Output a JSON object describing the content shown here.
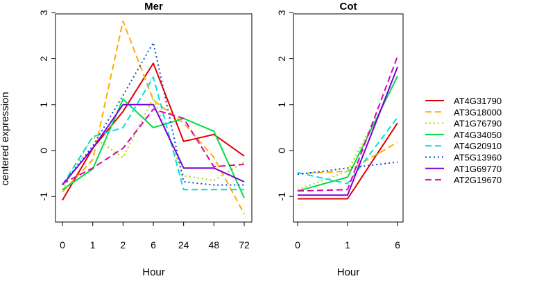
{
  "ylabel": "centered expression",
  "chart_data": [
    {
      "type": "line",
      "title": "Mer",
      "xlabel": "Hour",
      "categories": [
        "0",
        "1",
        "2",
        "6",
        "24",
        "48",
        "72"
      ],
      "ylim": [
        -1.5,
        3
      ],
      "yticks": [
        -1,
        0,
        1,
        2,
        3
      ],
      "series": [
        {
          "name": "AT4G31790",
          "values": [
            -1.08,
            0.05,
            0.85,
            1.9,
            0.2,
            0.35,
            -0.12
          ]
        },
        {
          "name": "AT3G18000",
          "values": [
            -0.9,
            -0.2,
            2.82,
            1.1,
            0.6,
            -0.15,
            -1.38
          ]
        },
        {
          "name": "AT1G76790",
          "values": [
            -0.85,
            0.3,
            -0.15,
            1.15,
            -0.55,
            -0.65,
            -0.25
          ]
        },
        {
          "name": "AT4G34050",
          "values": [
            -0.85,
            -0.4,
            1.12,
            0.5,
            0.7,
            0.42,
            -1.03
          ]
        },
        {
          "name": "AT4G20910",
          "values": [
            -0.75,
            0.3,
            0.5,
            1.6,
            -0.85,
            -0.85,
            -0.85
          ]
        },
        {
          "name": "AT5G13960",
          "values": [
            -0.75,
            0.1,
            1.2,
            2.35,
            -0.68,
            -0.75,
            -0.75
          ]
        },
        {
          "name": "AT1G69770",
          "values": [
            -0.75,
            0.05,
            1.0,
            1.0,
            -0.38,
            -0.38,
            -0.68
          ]
        },
        {
          "name": "AT2G19670",
          "values": [
            -0.72,
            -0.38,
            0.05,
            0.9,
            0.7,
            -0.35,
            -0.3
          ]
        }
      ]
    },
    {
      "type": "line",
      "title": "Cot",
      "xlabel": "Hour",
      "categories": [
        "0",
        "1",
        "6"
      ],
      "ylim": [
        -1.5,
        3
      ],
      "yticks": [
        -1,
        0,
        1,
        2,
        3
      ],
      "series": [
        {
          "name": "AT4G31790",
          "values": [
            -1.05,
            -1.05,
            0.6
          ]
        },
        {
          "name": "AT3G18000",
          "values": [
            -0.5,
            -0.45,
            0.18
          ]
        },
        {
          "name": "AT1G76790",
          "values": [
            -0.85,
            -0.45,
            1.6
          ]
        },
        {
          "name": "AT4G34050",
          "values": [
            -0.88,
            -0.58,
            1.62
          ]
        },
        {
          "name": "AT4G20910",
          "values": [
            -0.48,
            -0.72,
            0.72
          ]
        },
        {
          "name": "AT5G13960",
          "values": [
            -0.52,
            -0.38,
            -0.25
          ]
        },
        {
          "name": "AT1G69770",
          "values": [
            -0.97,
            -0.97,
            1.82
          ]
        },
        {
          "name": "AT2G19670",
          "values": [
            -0.88,
            -0.85,
            2.05
          ]
        }
      ]
    }
  ],
  "legend": {
    "position": "right",
    "entries": [
      {
        "label": "AT4G31790",
        "color": "#dd0000",
        "dash": "solid"
      },
      {
        "label": "AT3G18000",
        "color": "#ffaa00",
        "dash": "dashed"
      },
      {
        "label": "AT1G76790",
        "color": "#99dd00",
        "dash": "dotted"
      },
      {
        "label": "AT4G34050",
        "color": "#00dd44",
        "dash": "solid"
      },
      {
        "label": "AT4G20910",
        "color": "#00dddd",
        "dash": "dashed"
      },
      {
        "label": "AT5G13960",
        "color": "#0044dd",
        "dash": "dotted"
      },
      {
        "label": "AT1G69770",
        "color": "#7700dd",
        "dash": "solid"
      },
      {
        "label": "AT2G19670",
        "color": "#dd00aa",
        "dash": "dashed"
      }
    ]
  }
}
